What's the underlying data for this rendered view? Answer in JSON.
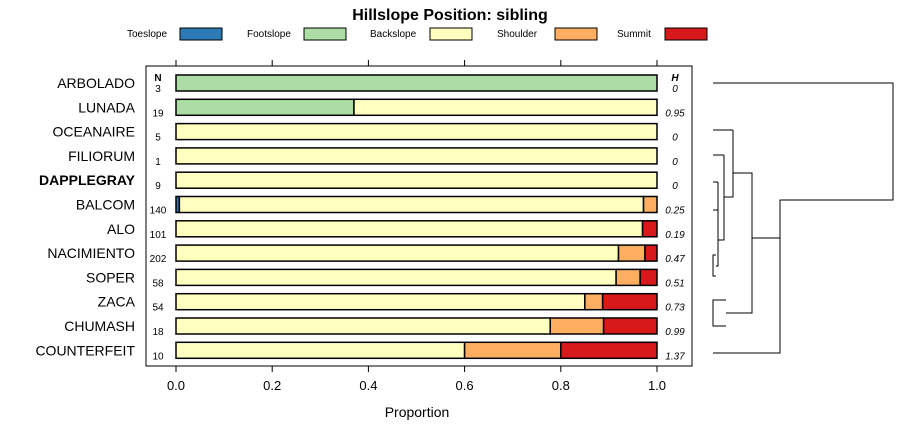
{
  "chart_data": {
    "type": "bar",
    "stacked": true,
    "orientation": "horizontal",
    "title": "Hillslope Position: sibling",
    "xlabel": "Proportion",
    "ylabel": "",
    "xlim": [
      0,
      1
    ],
    "x_ticks": [
      "0.0",
      "0.2",
      "0.4",
      "0.6",
      "0.8",
      "1.0"
    ],
    "n_header": "N",
    "h_header": "H",
    "legend_position": "top",
    "legend": [
      {
        "name": "Toeslope",
        "color": "#2c7bb6"
      },
      {
        "name": "Footslope",
        "color": "#abdda4"
      },
      {
        "name": "Backslope",
        "color": "#ffffbf"
      },
      {
        "name": "Shoulder",
        "color": "#fdae61"
      },
      {
        "name": "Summit",
        "color": "#d7191c"
      }
    ],
    "rows": [
      {
        "name": "ARBOLADO",
        "n": "3",
        "h": "0",
        "bold": false,
        "values": [
          0,
          1,
          0,
          0,
          0
        ]
      },
      {
        "name": "LUNADA",
        "n": "19",
        "h": "0.95",
        "bold": false,
        "values": [
          0,
          0.37,
          0.63,
          0,
          0
        ]
      },
      {
        "name": "OCEANAIRE",
        "n": "5",
        "h": "0",
        "bold": false,
        "values": [
          0,
          0,
          1,
          0,
          0
        ]
      },
      {
        "name": "FILIORUM",
        "n": "1",
        "h": "0",
        "bold": false,
        "values": [
          0,
          0,
          1,
          0,
          0
        ]
      },
      {
        "name": "DAPPLEGRAY",
        "n": "9",
        "h": "0",
        "bold": true,
        "values": [
          0,
          0,
          1,
          0,
          0
        ]
      },
      {
        "name": "BALCOM",
        "n": "140",
        "h": "0.25",
        "bold": false,
        "values": [
          0.007,
          0,
          0.965,
          0.028,
          0
        ]
      },
      {
        "name": "ALO",
        "n": "101",
        "h": "0.19",
        "bold": false,
        "values": [
          0,
          0,
          0.97,
          0,
          0.03
        ]
      },
      {
        "name": "NACIMIENTO",
        "n": "202",
        "h": "0.47",
        "bold": false,
        "values": [
          0,
          0,
          0.92,
          0.055,
          0.025
        ]
      },
      {
        "name": "SOPER",
        "n": "58",
        "h": "0.51",
        "bold": false,
        "values": [
          0,
          0,
          0.915,
          0.05,
          0.035
        ]
      },
      {
        "name": "ZACA",
        "n": "54",
        "h": "0.73",
        "bold": false,
        "values": [
          0,
          0,
          0.85,
          0.037,
          0.113
        ]
      },
      {
        "name": "CHUMASH",
        "n": "18",
        "h": "0.99",
        "bold": false,
        "values": [
          0,
          0,
          0.778,
          0.111,
          0.111
        ]
      },
      {
        "name": "COUNTERFEIT",
        "n": "10",
        "h": "1.37",
        "bold": false,
        "values": [
          0,
          0,
          0.6,
          0.2,
          0.2
        ]
      }
    ]
  }
}
